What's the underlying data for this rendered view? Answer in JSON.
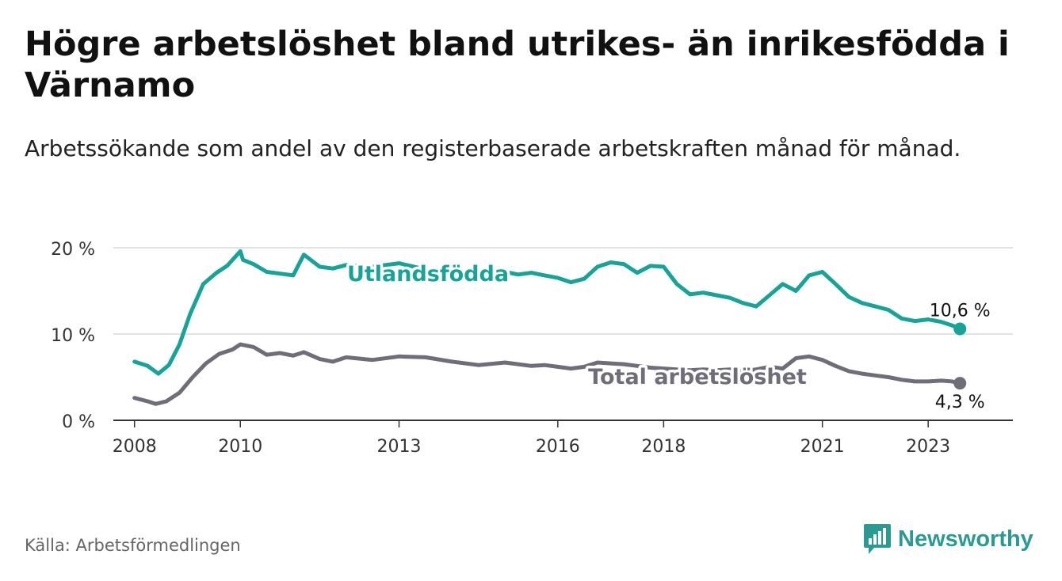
{
  "title": "Högre arbetslöshet bland utrikes- än inrikesfödda i Värnamo",
  "subtitle": "Arbetssökande som andel av den registerbaserade arbetskraften månad för månad.",
  "source": "Källa: Arbetsförmedlingen",
  "brand": "Newsworthy",
  "colors": {
    "foreign": "#17a398",
    "total": "#6e6d78",
    "grid": "#d9d9d9",
    "axis": "#333333",
    "brand": "#2a9a93"
  },
  "chart_data": {
    "type": "line",
    "title": "Högre arbetslöshet bland utrikes- än inrikesfödda i Värnamo",
    "xlabel": "",
    "ylabel": "",
    "xlim": [
      2007.6,
      2024.6
    ],
    "ylim": [
      0,
      20
    ],
    "y_ticks": [
      0,
      10,
      20
    ],
    "y_tick_labels": [
      "0 %",
      "10 %",
      "20 %"
    ],
    "x_ticks": [
      2008,
      2010,
      2013,
      2016,
      2018,
      2021,
      2023
    ],
    "x_tick_labels": [
      "2008",
      "2010",
      "2013",
      "2016",
      "2018",
      "2021",
      "2023"
    ],
    "grid": true,
    "series": [
      {
        "name": "Utlandsfödda",
        "label": "Utlandsfödda",
        "end_label": "10,6 %",
        "color": "#17a398",
        "x": [
          2008.0,
          2008.25,
          2008.45,
          2008.65,
          2008.85,
          2009.05,
          2009.3,
          2009.55,
          2009.75,
          2010.0,
          2010.05,
          2010.25,
          2010.5,
          2010.75,
          2011.0,
          2011.2,
          2011.5,
          2011.75,
          2012.0,
          2012.5,
          2013.0,
          2013.5,
          2014.0,
          2014.5,
          2015.0,
          2015.25,
          2015.5,
          2015.75,
          2016.0,
          2016.25,
          2016.5,
          2016.75,
          2017.0,
          2017.25,
          2017.5,
          2017.75,
          2018.0,
          2018.25,
          2018.5,
          2018.75,
          2019.0,
          2019.25,
          2019.5,
          2019.75,
          2020.0,
          2020.25,
          2020.5,
          2020.75,
          2021.0,
          2021.25,
          2021.5,
          2021.75,
          2022.0,
          2022.25,
          2022.5,
          2022.75,
          2023.0,
          2023.25,
          2023.45,
          2023.6
        ],
        "values": [
          6.8,
          6.3,
          5.4,
          6.4,
          8.8,
          12.3,
          15.8,
          17.1,
          17.9,
          19.6,
          18.6,
          18.1,
          17.2,
          17.0,
          16.8,
          19.2,
          17.8,
          17.6,
          18.0,
          17.8,
          18.2,
          17.5,
          16.8,
          16.5,
          17.2,
          16.9,
          17.1,
          16.8,
          16.5,
          16.0,
          16.4,
          17.8,
          18.3,
          18.1,
          17.1,
          17.9,
          17.8,
          15.8,
          14.6,
          14.8,
          14.5,
          14.2,
          13.6,
          13.2,
          14.5,
          15.8,
          15.0,
          16.8,
          17.2,
          15.8,
          14.3,
          13.6,
          13.2,
          12.8,
          11.8,
          11.5,
          11.7,
          11.4,
          11.0,
          10.6
        ]
      },
      {
        "name": "Total arbetslöshet",
        "label": "Total arbetslöshet",
        "end_label": "4,3 %",
        "color": "#6e6d78",
        "x": [
          2008.0,
          2008.25,
          2008.4,
          2008.6,
          2008.85,
          2009.1,
          2009.35,
          2009.6,
          2009.85,
          2010.0,
          2010.25,
          2010.5,
          2010.75,
          2011.0,
          2011.2,
          2011.5,
          2011.75,
          2012.0,
          2012.5,
          2013.0,
          2013.5,
          2014.0,
          2014.5,
          2015.0,
          2015.25,
          2015.5,
          2015.75,
          2016.0,
          2016.25,
          2016.5,
          2016.75,
          2017.0,
          2017.25,
          2017.5,
          2017.75,
          2018.0,
          2018.25,
          2018.5,
          2018.75,
          2019.0,
          2019.25,
          2019.5,
          2019.75,
          2020.0,
          2020.25,
          2020.5,
          2020.75,
          2021.0,
          2021.25,
          2021.5,
          2021.75,
          2022.0,
          2022.25,
          2022.5,
          2022.75,
          2023.0,
          2023.25,
          2023.45,
          2023.6
        ],
        "values": [
          2.6,
          2.2,
          1.9,
          2.2,
          3.2,
          5.0,
          6.6,
          7.7,
          8.2,
          8.8,
          8.5,
          7.6,
          7.8,
          7.5,
          7.9,
          7.1,
          6.8,
          7.3,
          7.0,
          7.4,
          7.3,
          6.8,
          6.4,
          6.7,
          6.5,
          6.3,
          6.4,
          6.2,
          6.0,
          6.2,
          6.7,
          6.6,
          6.5,
          6.3,
          6.1,
          6.0,
          5.9,
          5.8,
          5.9,
          5.8,
          5.9,
          5.7,
          5.9,
          6.2,
          6.0,
          7.2,
          7.4,
          7.0,
          6.3,
          5.7,
          5.4,
          5.2,
          5.0,
          4.7,
          4.5,
          4.5,
          4.6,
          4.5,
          4.3
        ]
      }
    ]
  }
}
